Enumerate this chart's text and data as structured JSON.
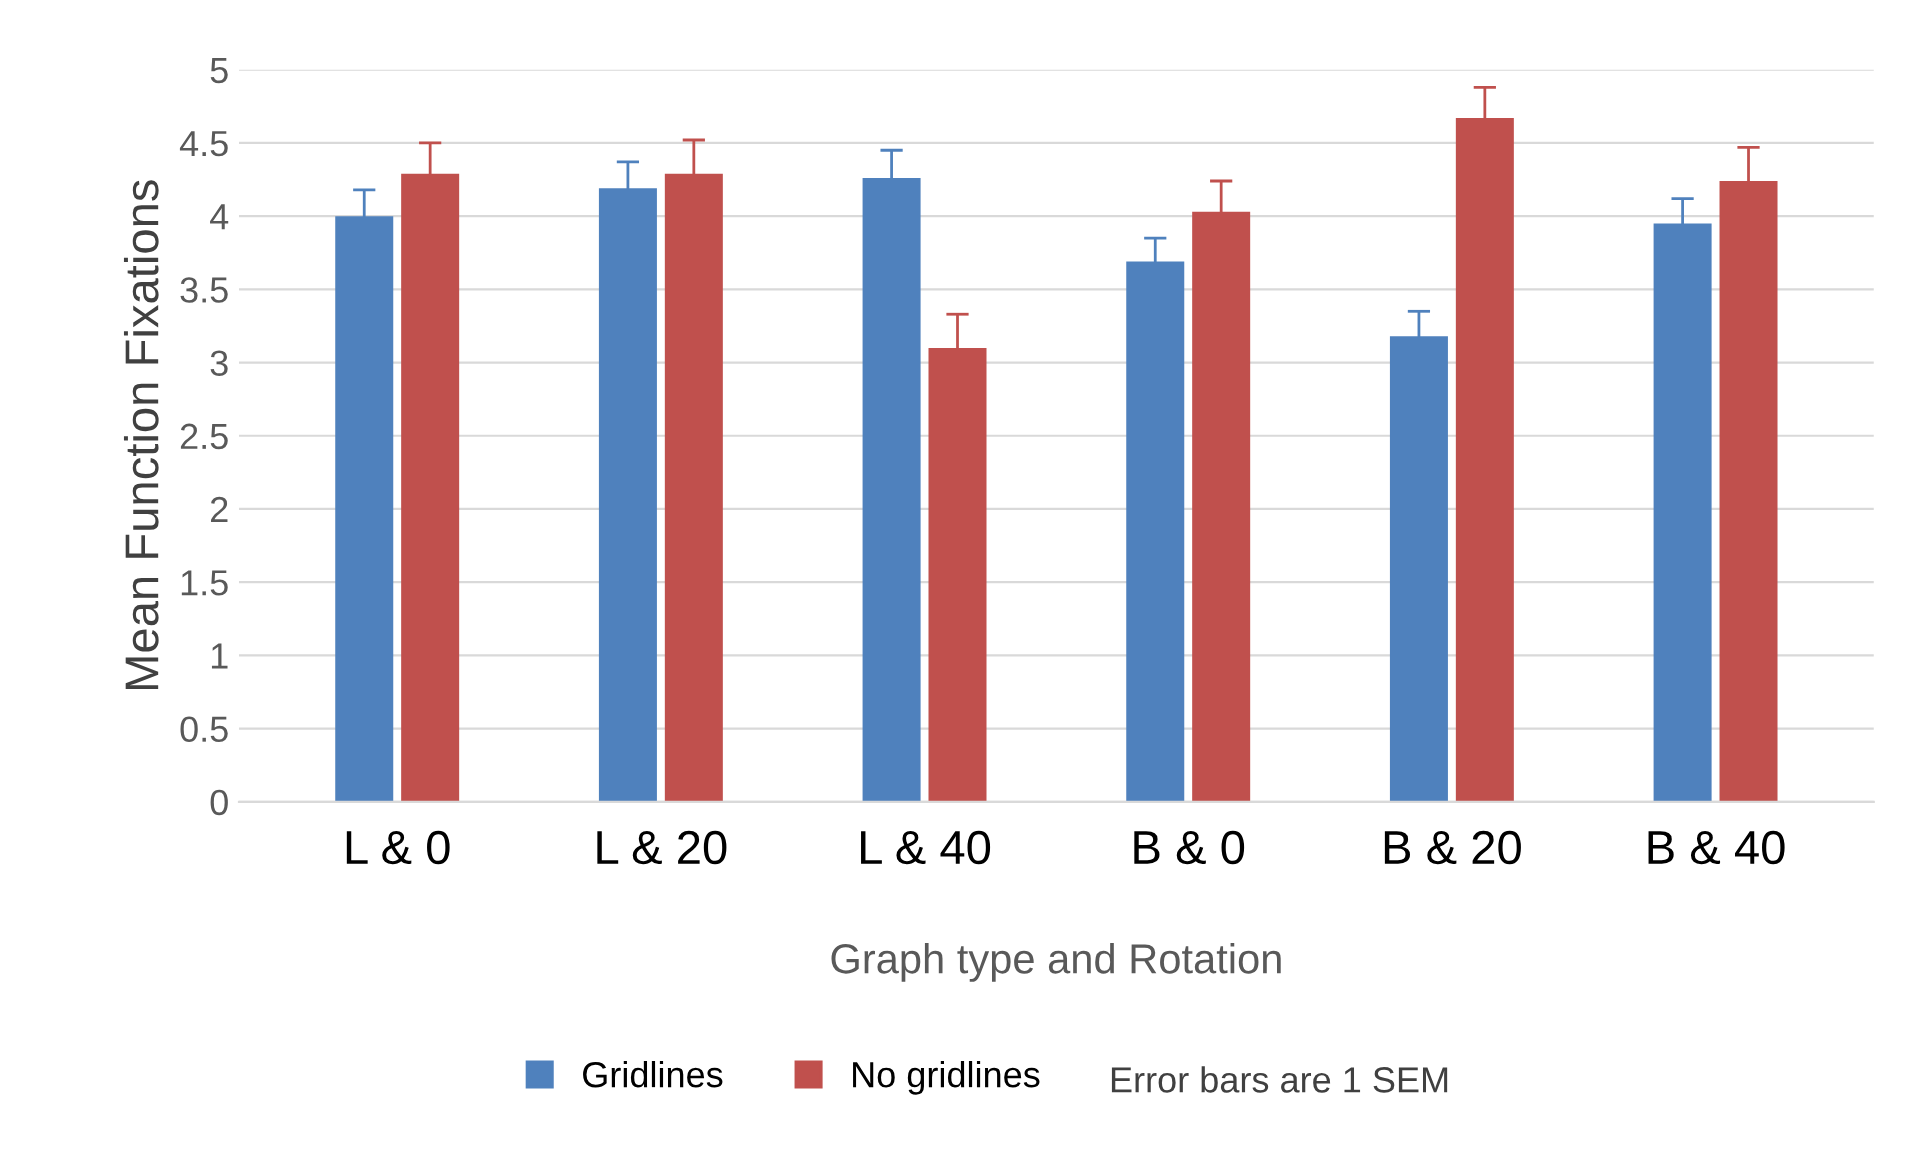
{
  "chart_data": {
    "type": "bar",
    "xlabel": "Graph type and Rotation",
    "ylabel": "Mean Function Fixations",
    "categories": [
      "L & 0",
      "L & 20",
      "L & 40",
      "B & 0",
      "B & 20",
      "B & 40"
    ],
    "series": [
      {
        "name": "Gridlines",
        "color": "#4f81bd",
        "values": [
          4.0,
          4.19,
          4.26,
          3.69,
          3.18,
          3.95
        ],
        "errors": [
          0.18,
          0.18,
          0.19,
          0.16,
          0.17,
          0.17
        ]
      },
      {
        "name": "No gridlines",
        "color": "#c0504d",
        "values": [
          4.29,
          4.29,
          3.1,
          4.03,
          4.67,
          4.24
        ],
        "errors": [
          0.21,
          0.23,
          0.23,
          0.21,
          0.21,
          0.23
        ]
      }
    ],
    "ylim": [
      0,
      5
    ],
    "yticks": [
      0,
      0.5,
      1,
      1.5,
      2,
      2.5,
      3,
      3.5,
      4,
      4.5,
      5
    ],
    "grid": "y",
    "legend": "bottom",
    "annotations": [
      "Error bars are 1 SEM"
    ]
  }
}
